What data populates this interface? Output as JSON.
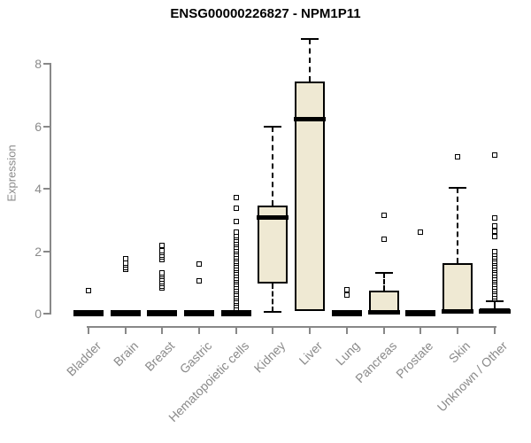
{
  "title": "ENSG00000226827 - NPM1P11",
  "chart_data": {
    "type": "boxplot",
    "title": "ENSG00000226827 - NPM1P11",
    "xlabel": "",
    "ylabel": "Expression",
    "ylim": [
      0,
      8.8
    ],
    "yticks": [
      0,
      2,
      4,
      6,
      8
    ],
    "grid": false,
    "legend": "none",
    "box_fill": "#EFE9D3",
    "box_stroke": "#000000",
    "axis_color": "#888888",
    "label_color": "#8a8a8a",
    "categories": [
      "Bladder",
      "Brain",
      "Breast",
      "Gastric",
      "Hematopoietic cells",
      "Kidney",
      "Liver",
      "Lung",
      "Pancreas",
      "Prostate",
      "Skin",
      "Unknown / Other"
    ],
    "series": [
      {
        "category": "Bladder",
        "q1": 0,
        "median": 0,
        "q3": 0,
        "whisker_low": 0,
        "whisker_high": 0,
        "outliers": [
          0.7
        ]
      },
      {
        "category": "Brain",
        "q1": 0,
        "median": 0,
        "q3": 0,
        "whisker_low": 0,
        "whisker_high": 0,
        "outliers": [
          1.38,
          1.45,
          1.52,
          1.6,
          1.72
        ]
      },
      {
        "category": "Breast",
        "q1": 0,
        "median": 0,
        "q3": 0,
        "whisker_low": 0,
        "whisker_high": 0,
        "outliers": [
          0.79,
          0.86,
          0.93,
          1.0,
          1.08,
          1.15,
          1.22,
          1.28,
          1.7,
          1.78,
          1.85,
          1.93,
          2.0,
          2.16
        ]
      },
      {
        "category": "Gastric",
        "q1": 0,
        "median": 0,
        "q3": 0,
        "whisker_low": 0,
        "whisker_high": 0,
        "outliers": [
          1.02,
          1.57
        ]
      },
      {
        "category": "Hematopoietic cells",
        "q1": 0,
        "median": 0,
        "q3": 0,
        "whisker_low": 0,
        "whisker_high": 0,
        "outliers": [
          0.15,
          0.22,
          0.3,
          0.38,
          0.45,
          0.52,
          0.6,
          0.68,
          0.75,
          0.82,
          0.9,
          0.98,
          1.05,
          1.12,
          1.2,
          1.28,
          1.35,
          1.42,
          1.5,
          1.58,
          1.65,
          1.72,
          1.8,
          1.88,
          1.95,
          2.02,
          2.1,
          2.18,
          2.25,
          2.32,
          2.4,
          2.48,
          2.58,
          2.92,
          3.35,
          3.69
        ]
      },
      {
        "category": "Kidney",
        "q1": 0.93,
        "median": 3.05,
        "q3": 3.44,
        "whisker_low": 0.02,
        "whisker_high": 5.95,
        "outliers": []
      },
      {
        "category": "Liver",
        "q1": 0.05,
        "median": 6.2,
        "q3": 7.4,
        "whisker_low": 0.05,
        "whisker_high": 8.78,
        "outliers": []
      },
      {
        "category": "Lung",
        "q1": 0,
        "median": 0,
        "q3": 0,
        "whisker_low": 0,
        "whisker_high": 0,
        "outliers": [
          0.57,
          0.74
        ]
      },
      {
        "category": "Pancreas",
        "q1": 0,
        "median": 0.02,
        "q3": 0.71,
        "whisker_low": 0,
        "whisker_high": 1.28,
        "outliers": [
          2.35,
          3.13
        ]
      },
      {
        "category": "Prostate",
        "q1": 0,
        "median": 0,
        "q3": 0,
        "whisker_low": 0,
        "whisker_high": 0,
        "outliers": [
          2.57
        ]
      },
      {
        "category": "Skin",
        "q1": 0,
        "median": 0.03,
        "q3": 1.59,
        "whisker_low": 0,
        "whisker_high": 4.0,
        "outliers": [
          4.99
        ]
      },
      {
        "category": "Unknown / Other",
        "q1": 0,
        "median": 0.03,
        "q3": 0.15,
        "whisker_low": 0,
        "whisker_high": 0.37,
        "outliers": [
          0.45,
          0.52,
          0.6,
          0.68,
          0.75,
          0.82,
          0.9,
          0.98,
          1.05,
          1.12,
          1.2,
          1.28,
          1.35,
          1.42,
          1.5,
          1.58,
          1.65,
          1.72,
          1.8,
          1.88,
          1.95,
          2.45,
          2.6,
          2.78,
          3.04,
          5.04
        ]
      }
    ]
  }
}
